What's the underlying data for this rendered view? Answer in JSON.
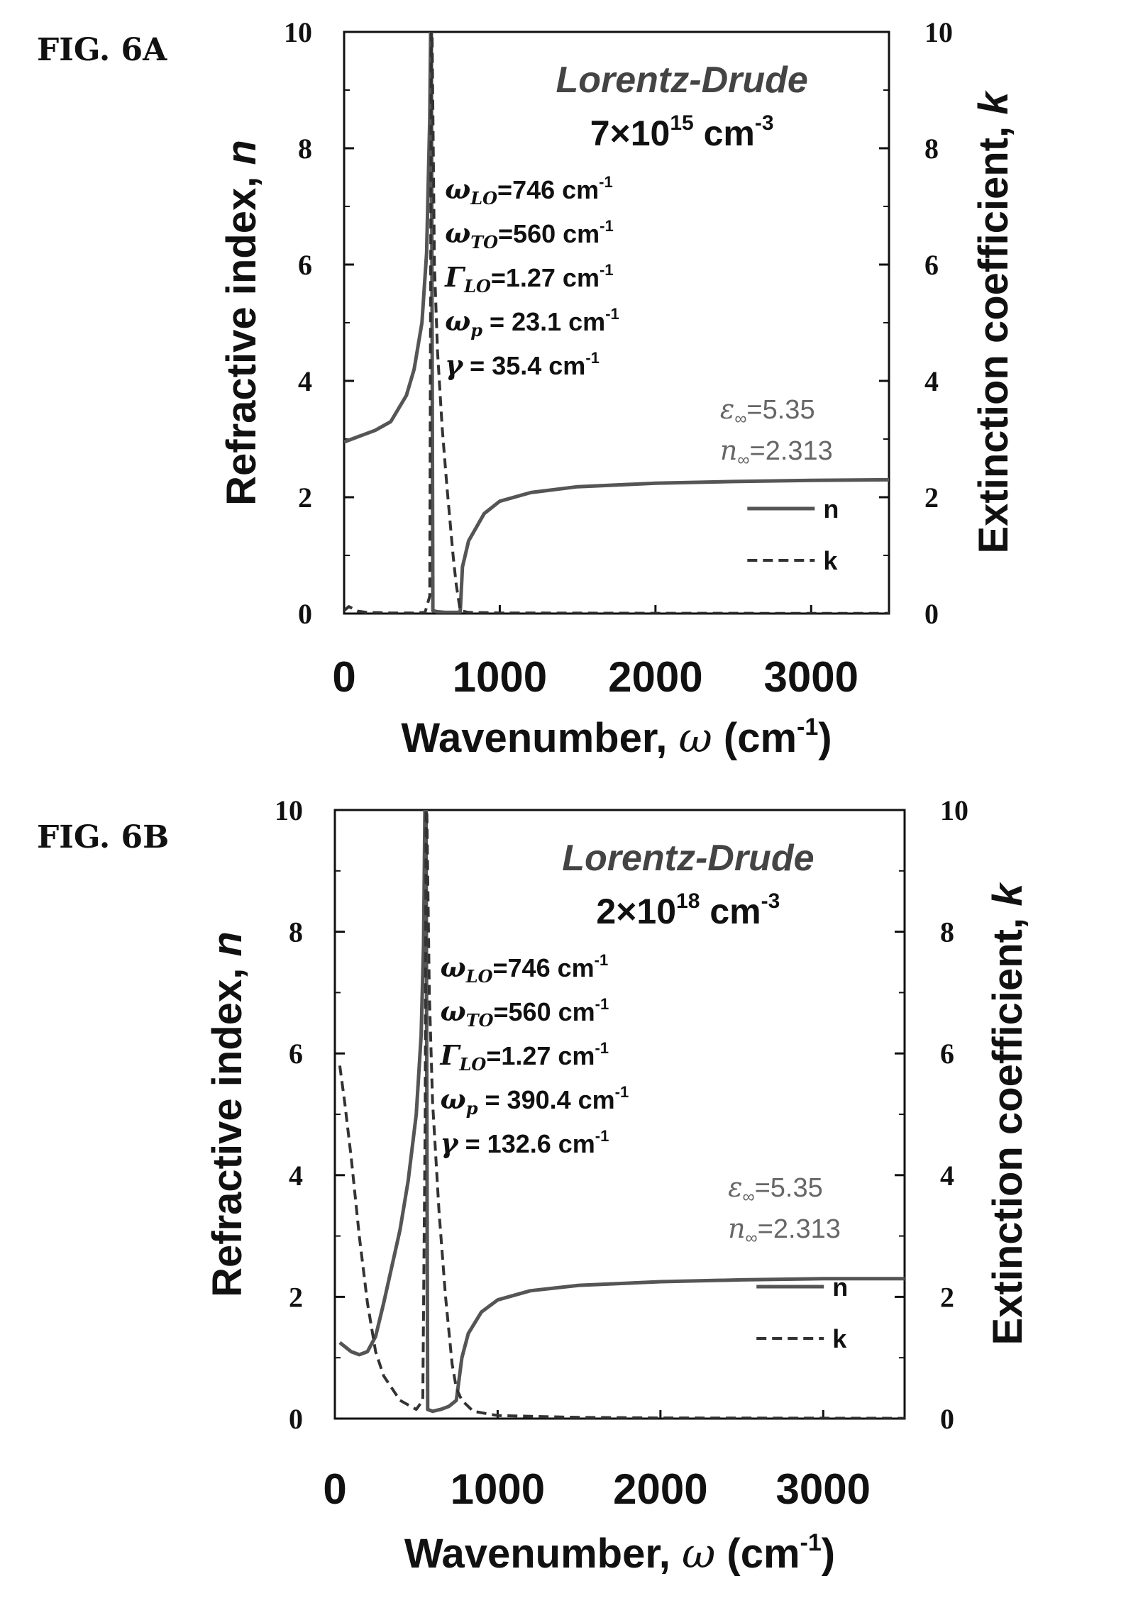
{
  "chart_data": [
    {
      "type": "line",
      "figure_label": "FIG. 6A",
      "title": "Lorentz-Drude",
      "subtitle": {
        "prefix": "7×10",
        "exp": "15",
        "unit": "cm",
        "unit_exp": "-3"
      },
      "xlabel": {
        "text": "Wavenumber, ",
        "symbol": "ω",
        "unit": "(cm",
        "unit_exp": "-1",
        "close": ")"
      },
      "ylabel_left": {
        "text": "Refractive index, ",
        "symbol": "n"
      },
      "ylabel_right": {
        "text": "Extinction coefficient, ",
        "symbol": "k"
      },
      "xlim": [
        0,
        3500
      ],
      "ylim": [
        0,
        10
      ],
      "x_ticks": [
        0,
        1000,
        2000,
        3000
      ],
      "y_ticks": [
        0,
        2,
        4,
        6,
        8,
        10
      ],
      "grid": false,
      "legend_position": "right",
      "parameters": [
        {
          "sym": "ω",
          "sub": "LO",
          "value": "=746 cm",
          "exp": "-1"
        },
        {
          "sym": "ω",
          "sub": "TO",
          "value": "=560 cm",
          "exp": "-1"
        },
        {
          "sym": "Γ",
          "sub": "LO",
          "value": "=1.27 cm",
          "exp": "-1"
        },
        {
          "sym": "ω",
          "sub": "p",
          "value": " = 23.1 cm",
          "exp": "-1"
        },
        {
          "sym": "γ",
          "sub": "",
          "value": " = 35.4 cm",
          "exp": "-1"
        }
      ],
      "constants": [
        {
          "sym": "ε",
          "sub": "∞",
          "value": "=5.35"
        },
        {
          "sym": "n",
          "sub": "∞",
          "value": "=2.313"
        }
      ],
      "series": [
        {
          "name": "n",
          "style": "solid",
          "color": "#555555",
          "x": [
            0,
            100,
            200,
            300,
            400,
            450,
            500,
            530,
            550,
            556,
            560,
            570,
            600,
            650,
            700,
            730,
            746,
            760,
            800,
            900,
            1000,
            1200,
            1500,
            2000,
            2500,
            3000,
            3500
          ],
          "y": [
            2.95,
            3.05,
            3.15,
            3.3,
            3.75,
            4.2,
            5.0,
            6.2,
            8.5,
            10,
            10,
            0.05,
            0.03,
            0.02,
            0.02,
            0.02,
            0.03,
            0.8,
            1.25,
            1.72,
            1.93,
            2.08,
            2.18,
            2.24,
            2.27,
            2.29,
            2.3
          ]
        },
        {
          "name": "k",
          "style": "dashed",
          "color": "#333333",
          "x": [
            0,
            30,
            60,
            90,
            150,
            300,
            450,
            520,
            550,
            555,
            560,
            565,
            580,
            600,
            630,
            660,
            700,
            720,
            746,
            800,
            1000,
            2000,
            3500
          ],
          "y": [
            0.05,
            0.12,
            0.08,
            0.04,
            0.02,
            0.01,
            0.01,
            0.02,
            0.3,
            5,
            10,
            10,
            6.0,
            4.5,
            3.2,
            2.2,
            1.0,
            0.5,
            0.05,
            0.02,
            0.01,
            0.005,
            0.003
          ]
        }
      ]
    },
    {
      "type": "line",
      "figure_label": "FIG. 6B",
      "title": "Lorentz-Drude",
      "subtitle": {
        "prefix": "2×10",
        "exp": "18",
        "unit": "cm",
        "unit_exp": "-3"
      },
      "xlabel": {
        "text": "Wavenumber, ",
        "symbol": "ω",
        "unit": "(cm",
        "unit_exp": "-1",
        "close": ")"
      },
      "ylabel_left": {
        "text": "Refractive index, ",
        "symbol": "n"
      },
      "ylabel_right": {
        "text": "Extinction coefficient, ",
        "symbol": "k"
      },
      "xlim": [
        0,
        3500
      ],
      "ylim": [
        0,
        10
      ],
      "x_ticks": [
        0,
        1000,
        2000,
        3000
      ],
      "y_ticks": [
        0,
        2,
        4,
        6,
        8,
        10
      ],
      "grid": false,
      "legend_position": "right",
      "parameters": [
        {
          "sym": "ω",
          "sub": "LO",
          "value": "=746 cm",
          "exp": "-1"
        },
        {
          "sym": "ω",
          "sub": "TO",
          "value": "=560 cm",
          "exp": "-1"
        },
        {
          "sym": "Γ",
          "sub": "LO",
          "value": "=1.27 cm",
          "exp": "-1"
        },
        {
          "sym": "ω",
          "sub": "p",
          "value": " = 390.4 cm",
          "exp": "-1"
        },
        {
          "sym": "γ",
          "sub": "",
          "value": " = 132.6 cm",
          "exp": "-1"
        }
      ],
      "constants": [
        {
          "sym": "ε",
          "sub": "∞",
          "value": "=5.35"
        },
        {
          "sym": "n",
          "sub": "∞",
          "value": "=2.313"
        }
      ],
      "series": [
        {
          "name": "n",
          "style": "solid",
          "color": "#555555",
          "x": [
            30,
            100,
            150,
            200,
            250,
            300,
            350,
            400,
            450,
            500,
            530,
            545,
            553,
            560,
            570,
            600,
            650,
            700,
            746,
            780,
            820,
            900,
            1000,
            1200,
            1500,
            2000,
            2500,
            3000,
            3500
          ],
          "y": [
            1.25,
            1.1,
            1.05,
            1.1,
            1.35,
            1.9,
            2.5,
            3.1,
            3.9,
            5.0,
            6.3,
            7.8,
            10,
            10,
            0.15,
            0.12,
            0.15,
            0.2,
            0.3,
            1.0,
            1.4,
            1.75,
            1.95,
            2.1,
            2.19,
            2.25,
            2.28,
            2.3,
            2.3
          ]
        },
        {
          "name": "k",
          "style": "dashed",
          "color": "#333333",
          "x": [
            30,
            60,
            100,
            150,
            200,
            250,
            300,
            400,
            500,
            540,
            555,
            560,
            565,
            580,
            600,
            640,
            680,
            720,
            746,
            780,
            850,
            1000,
            1500,
            2000,
            3500
          ],
          "y": [
            5.8,
            5.2,
            4.3,
            3.0,
            1.9,
            1.1,
            0.7,
            0.3,
            0.15,
            0.3,
            5,
            10,
            10,
            7.0,
            5.2,
            3.4,
            2.0,
            0.9,
            0.5,
            0.3,
            0.12,
            0.05,
            0.02,
            0.01,
            0.005
          ]
        }
      ]
    }
  ]
}
